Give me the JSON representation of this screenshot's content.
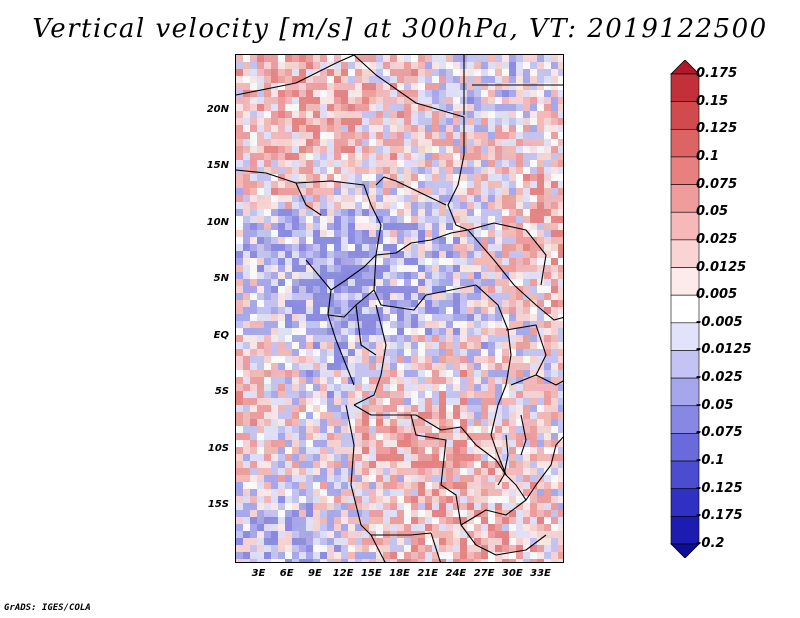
{
  "title": "Vertical velocity [m/s] at 300hPa, VT: 2019122500",
  "footer": "GrADS: IGES/COLA",
  "map": {
    "lat_labels": [
      "20N",
      "15N",
      "10N",
      "5N",
      "EQ",
      "5S",
      "10S",
      "15S"
    ],
    "lon_labels": [
      "3E",
      "6E",
      "9E",
      "12E",
      "15E",
      "18E",
      "21E",
      "24E",
      "27E",
      "30E",
      "33E"
    ],
    "lat_range": [
      -20,
      25
    ],
    "lon_range": [
      0.5,
      35.5
    ]
  },
  "colorbar": {
    "labels": [
      "0.175",
      "0.15",
      "0.125",
      "0.1",
      "0.075",
      "0.05",
      "0.025",
      "0.0125",
      "0.005",
      "-0.005",
      "-0.0125",
      "-0.025",
      "-0.05",
      "-0.075",
      "-0.1",
      "-0.125",
      "-0.175",
      "-0.2"
    ],
    "colors": [
      "#b2182b",
      "#c2303a",
      "#d04a4e",
      "#dc6464",
      "#e88080",
      "#f09c9c",
      "#f6b8b8",
      "#fad4d4",
      "#fdeaea",
      "#ffffff",
      "#e2e2fb",
      "#c4c4f4",
      "#a6a6ed",
      "#8888e4",
      "#6a6adb",
      "#4c4cd0",
      "#3030c2",
      "#1c1cb0",
      "#0e0e96"
    ]
  }
}
